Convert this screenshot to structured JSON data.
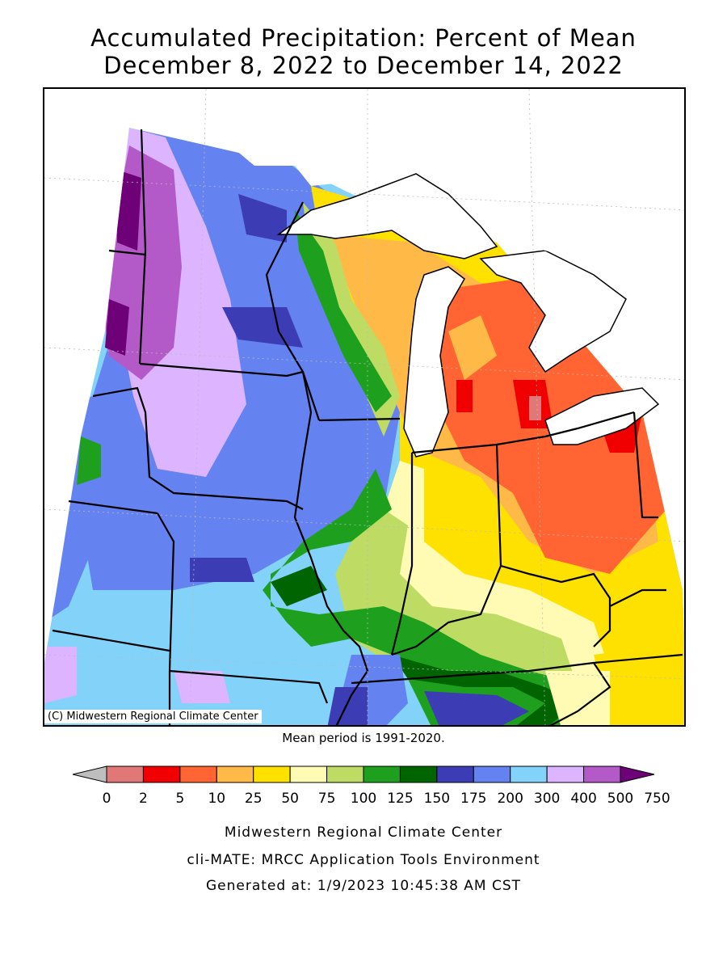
{
  "title_line1": "Accumulated Precipitation: Percent of Mean",
  "title_line2": "December 8, 2022 to December 14, 2022",
  "credit": "(C) Midwestern Regional Climate Center",
  "mean_period": "Mean period is 1991-2020.",
  "legend": {
    "colors": [
      "#bebebe",
      "#e07878",
      "#f00000",
      "#ff6432",
      "#ffb946",
      "#ffe100",
      "#fffab4",
      "#bedc64",
      "#1ea01e",
      "#006400",
      "#3c3cb4",
      "#6482f0",
      "#82d2fa",
      "#dcb4ff",
      "#b45ac8",
      "#6e0078"
    ],
    "labels": [
      "0",
      "2",
      "5",
      "10",
      "25",
      "50",
      "75",
      "100",
      "125",
      "150",
      "175",
      "200",
      "300",
      "400",
      "500",
      "750"
    ]
  },
  "footer": {
    "line1": "Midwestern Regional Climate Center",
    "line2": "cli-MATE: MRCC Application Tools Environment",
    "line3": "Generated at: 1/9/2023 10:45:38 AM CST"
  }
}
